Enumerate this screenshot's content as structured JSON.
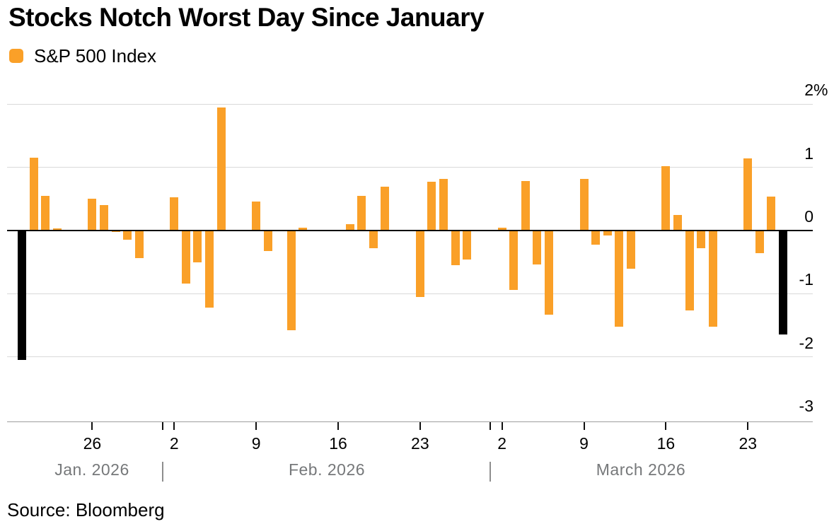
{
  "header": {
    "title": "Stocks Notch Worst Day Since January"
  },
  "legend": {
    "label": "S&P 500 Index"
  },
  "footer": {
    "source": "Source: Bloomberg"
  },
  "colors": {
    "series": "#FAA028",
    "highlight": "#000000"
  },
  "chart_data": {
    "type": "bar",
    "title": "Stocks Notch Worst Day Since January",
    "series_name": "S&P 500 Index",
    "unit": "%",
    "ylim": [
      -3,
      2
    ],
    "grid": true,
    "legend_position": "top-left",
    "y_axis_side": "right",
    "y_ticks": [
      {
        "value": 2,
        "label": "2",
        "suffix": "%"
      },
      {
        "value": 1,
        "label": "1"
      },
      {
        "value": 0,
        "label": "0"
      },
      {
        "value": -1,
        "label": "-1"
      },
      {
        "value": -2,
        "label": "-2"
      },
      {
        "value": -3,
        "label": "-3"
      }
    ],
    "x_ticks": [
      {
        "date": "2026-01-26",
        "label": "26"
      },
      {
        "date": "2026-02-01",
        "divider": true
      },
      {
        "date": "2026-02-02",
        "label": "2"
      },
      {
        "date": "2026-02-09",
        "label": "9"
      },
      {
        "date": "2026-02-16",
        "label": "16"
      },
      {
        "date": "2026-02-23",
        "label": "23"
      },
      {
        "date": "2026-03-01",
        "divider": true
      },
      {
        "date": "2026-03-02",
        "label": "2"
      },
      {
        "date": "2026-03-09",
        "label": "9"
      },
      {
        "date": "2026-03-16",
        "label": "16"
      },
      {
        "date": "2026-03-23",
        "label": "23"
      }
    ],
    "months": [
      {
        "label": "Jan. 2026"
      },
      {
        "label": "Feb. 2026"
      },
      {
        "label": "March 2026"
      }
    ],
    "bars": [
      {
        "date": "2026-01-20",
        "value": -2.05,
        "highlight": true
      },
      {
        "date": "2026-01-21",
        "value": 1.15
      },
      {
        "date": "2026-01-22",
        "value": 0.55
      },
      {
        "date": "2026-01-23",
        "value": 0.03
      },
      {
        "date": "2026-01-26",
        "value": 0.5
      },
      {
        "date": "2026-01-27",
        "value": 0.4
      },
      {
        "date": "2026-01-28",
        "value": -0.02
      },
      {
        "date": "2026-01-29",
        "value": -0.14
      },
      {
        "date": "2026-01-30",
        "value": -0.44
      },
      {
        "date": "2026-02-02",
        "value": 0.53
      },
      {
        "date": "2026-02-03",
        "value": -0.84
      },
      {
        "date": "2026-02-04",
        "value": -0.5
      },
      {
        "date": "2026-02-05",
        "value": -1.22
      },
      {
        "date": "2026-02-06",
        "value": 1.95
      },
      {
        "date": "2026-02-09",
        "value": 0.46
      },
      {
        "date": "2026-02-10",
        "value": -0.33
      },
      {
        "date": "2026-02-12",
        "value": -1.58
      },
      {
        "date": "2026-02-13",
        "value": 0.05
      },
      {
        "date": "2026-02-17",
        "value": 0.1
      },
      {
        "date": "2026-02-18",
        "value": 0.55
      },
      {
        "date": "2026-02-19",
        "value": -0.28
      },
      {
        "date": "2026-02-20",
        "value": 0.69
      },
      {
        "date": "2026-02-23",
        "value": -1.05
      },
      {
        "date": "2026-02-24",
        "value": 0.77
      },
      {
        "date": "2026-02-25",
        "value": 0.82
      },
      {
        "date": "2026-02-26",
        "value": -0.55
      },
      {
        "date": "2026-02-27",
        "value": -0.46
      },
      {
        "date": "2026-03-02",
        "value": 0.04
      },
      {
        "date": "2026-03-03",
        "value": -0.94
      },
      {
        "date": "2026-03-04",
        "value": 0.78
      },
      {
        "date": "2026-03-05",
        "value": -0.54
      },
      {
        "date": "2026-03-06",
        "value": -1.33
      },
      {
        "date": "2026-03-09",
        "value": 0.82
      },
      {
        "date": "2026-03-10",
        "value": -0.22
      },
      {
        "date": "2026-03-11",
        "value": -0.08
      },
      {
        "date": "2026-03-12",
        "value": -1.52
      },
      {
        "date": "2026-03-13",
        "value": -0.61
      },
      {
        "date": "2026-03-16",
        "value": 1.02
      },
      {
        "date": "2026-03-17",
        "value": 0.25
      },
      {
        "date": "2026-03-18",
        "value": -1.27
      },
      {
        "date": "2026-03-19",
        "value": -0.28
      },
      {
        "date": "2026-03-20",
        "value": -1.52
      },
      {
        "date": "2026-03-23",
        "value": 1.14
      },
      {
        "date": "2026-03-24",
        "value": -0.36
      },
      {
        "date": "2026-03-25",
        "value": 0.54
      },
      {
        "date": "2026-03-26",
        "value": -1.65,
        "highlight": true
      }
    ]
  }
}
